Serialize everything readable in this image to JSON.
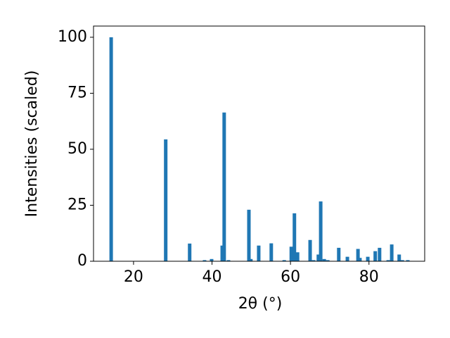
{
  "chart_data": {
    "type": "bar",
    "xlabel": "2θ (°)",
    "ylabel": "Intensities (scaled)",
    "color": "#1f77b4",
    "x": [
      14.3,
      28.2,
      34.3,
      38.1,
      39.9,
      42.6,
      43.1,
      44.2,
      49.4,
      49.9,
      51.9,
      55.1,
      58.4,
      60.2,
      61.0,
      61.8,
      65.0,
      65.9,
      67.1,
      67.7,
      68.6,
      69.5,
      72.3,
      74.5,
      77.2,
      77.7,
      79.7,
      81.6,
      82.7,
      84.9,
      85.8,
      87.7,
      88.5,
      89.9
    ],
    "values": [
      100,
      54.4,
      7.9,
      0.5,
      1,
      7,
      66.4,
      0.5,
      23,
      1,
      7,
      8,
      0.5,
      6.5,
      21.4,
      4,
      9.5,
      0.5,
      3,
      26.7,
      1,
      0.5,
      6,
      2,
      5.5,
      1.5,
      2,
      4.5,
      6,
      0.5,
      7.5,
      3,
      0.5,
      0.5
    ],
    "xlim": [
      9.8,
      94.2
    ],
    "ylim": [
      0,
      105
    ],
    "xticks": [
      20,
      40,
      60,
      80
    ],
    "yticks": [
      0,
      25,
      50,
      75,
      100
    ]
  }
}
